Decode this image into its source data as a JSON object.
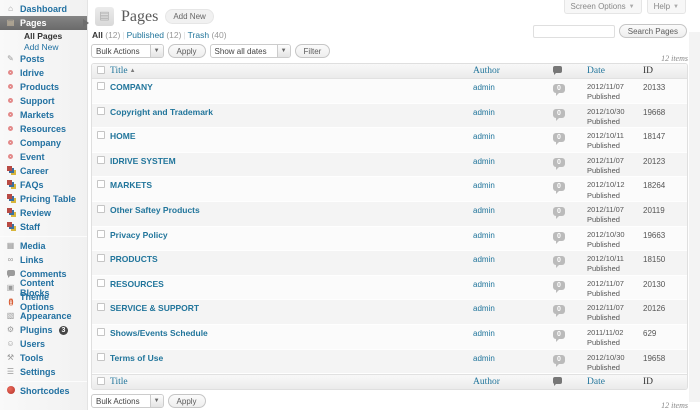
{
  "accent_color": "#21759b",
  "tabs": {
    "screen_options": "Screen Options",
    "help": "Help"
  },
  "header": {
    "title": "Pages",
    "add_new": "Add New"
  },
  "search": {
    "value": "",
    "button": "Search Pages"
  },
  "views": [
    {
      "label": "All",
      "count": "(12)",
      "current": true
    },
    {
      "label": "Published",
      "count": "(12)",
      "current": false
    },
    {
      "label": "Trash",
      "count": "(40)",
      "current": false
    }
  ],
  "toolbar": {
    "bulk_actions": "Bulk Actions",
    "apply": "Apply",
    "dates": "Show all dates",
    "filter": "Filter",
    "items_count": "12 items"
  },
  "table": {
    "columns": {
      "title": "Title",
      "author": "Author",
      "comments": "comment-bubble-icon",
      "date": "Date",
      "id": "ID"
    },
    "sort": {
      "column": "title",
      "direction": "asc"
    },
    "rows": [
      {
        "title": "COMPANY",
        "author": "admin",
        "comments": "0",
        "date": "2012/11/07",
        "status": "Published",
        "id": "20133"
      },
      {
        "title": "Copyright and Trademark",
        "author": "admin",
        "comments": "0",
        "date": "2012/10/30",
        "status": "Published",
        "id": "19668"
      },
      {
        "title": "HOME",
        "author": "admin",
        "comments": "0",
        "date": "2012/10/11",
        "status": "Published",
        "id": "18147"
      },
      {
        "title": "IDRIVE SYSTEM",
        "author": "admin",
        "comments": "0",
        "date": "2012/11/07",
        "status": "Published",
        "id": "20123"
      },
      {
        "title": "MARKETS",
        "author": "admin",
        "comments": "0",
        "date": "2012/10/12",
        "status": "Published",
        "id": "18264"
      },
      {
        "title": "Other Saftey Products",
        "author": "admin",
        "comments": "0",
        "date": "2012/11/07",
        "status": "Published",
        "id": "20119"
      },
      {
        "title": "Privacy Policy",
        "author": "admin",
        "comments": "0",
        "date": "2012/10/30",
        "status": "Published",
        "id": "19663"
      },
      {
        "title": "PRODUCTS",
        "author": "admin",
        "comments": "0",
        "date": "2012/10/11",
        "status": "Published",
        "id": "18150"
      },
      {
        "title": "RESOURCES",
        "author": "admin",
        "comments": "0",
        "date": "2012/11/07",
        "status": "Published",
        "id": "20130"
      },
      {
        "title": "SERVICE & SUPPORT",
        "author": "admin",
        "comments": "0",
        "date": "2012/11/07",
        "status": "Published",
        "id": "20126"
      },
      {
        "title": "Shows/Events Schedule",
        "author": "admin",
        "comments": "0",
        "date": "2011/11/02",
        "status": "Published",
        "id": "629"
      },
      {
        "title": "Terms of Use",
        "author": "admin",
        "comments": "0",
        "date": "2012/10/30",
        "status": "Published",
        "id": "19658"
      }
    ]
  },
  "footer_toolbar": {
    "bulk_actions": "Bulk Actions",
    "apply": "Apply",
    "items_count": "12 items"
  },
  "sidebar": {
    "items": [
      {
        "label": "Dashboard",
        "icon": "dashboard-icon",
        "type": "top"
      },
      {
        "label": "Pages",
        "icon": "pages-icon",
        "type": "top",
        "active": true
      },
      {
        "label": "All Pages",
        "type": "sub",
        "current": true
      },
      {
        "label": "Add New",
        "type": "sub"
      },
      {
        "label": "Posts",
        "icon": "posts-icon",
        "type": "top"
      },
      {
        "label": "Idrive",
        "icon": "ring-icon",
        "type": "top"
      },
      {
        "label": "Products",
        "icon": "ring-icon",
        "type": "top"
      },
      {
        "label": "Support",
        "icon": "ring-icon",
        "type": "top"
      },
      {
        "label": "Markets",
        "icon": "ring-icon",
        "type": "top"
      },
      {
        "label": "Resources",
        "icon": "ring-icon",
        "type": "top"
      },
      {
        "label": "Company",
        "icon": "ring-icon",
        "type": "top"
      },
      {
        "label": "Event",
        "icon": "ring-icon",
        "type": "top"
      },
      {
        "label": "Career",
        "icon": "layers-icon",
        "type": "top"
      },
      {
        "label": "FAQs",
        "icon": "layers-icon",
        "type": "top"
      },
      {
        "label": "Pricing Table",
        "icon": "layers-icon",
        "type": "top"
      },
      {
        "label": "Review",
        "icon": "layers-icon",
        "type": "top"
      },
      {
        "label": "Staff",
        "icon": "layers-icon",
        "type": "top"
      },
      {
        "separator": true
      },
      {
        "label": "Media",
        "icon": "media-icon",
        "type": "top"
      },
      {
        "label": "Links",
        "icon": "links-icon",
        "type": "top"
      },
      {
        "label": "Comments",
        "icon": "comments-icon",
        "type": "top"
      },
      {
        "label": "Content Blocks",
        "icon": "content-blocks-icon",
        "type": "top"
      },
      {
        "label": "Theme Options",
        "icon": "theme-options-alert-icon",
        "type": "top"
      },
      {
        "label": "Appearance",
        "icon": "appearance-icon",
        "type": "top"
      },
      {
        "label": "Plugins",
        "icon": "plugins-icon",
        "type": "top",
        "badge": "3"
      },
      {
        "label": "Users",
        "icon": "users-icon",
        "type": "top"
      },
      {
        "label": "Tools",
        "icon": "tools-icon",
        "type": "top"
      },
      {
        "label": "Settings",
        "icon": "settings-icon",
        "type": "top"
      },
      {
        "separator": true
      },
      {
        "label": "Shortcodes",
        "icon": "shortcodes-icon",
        "type": "top"
      }
    ]
  }
}
